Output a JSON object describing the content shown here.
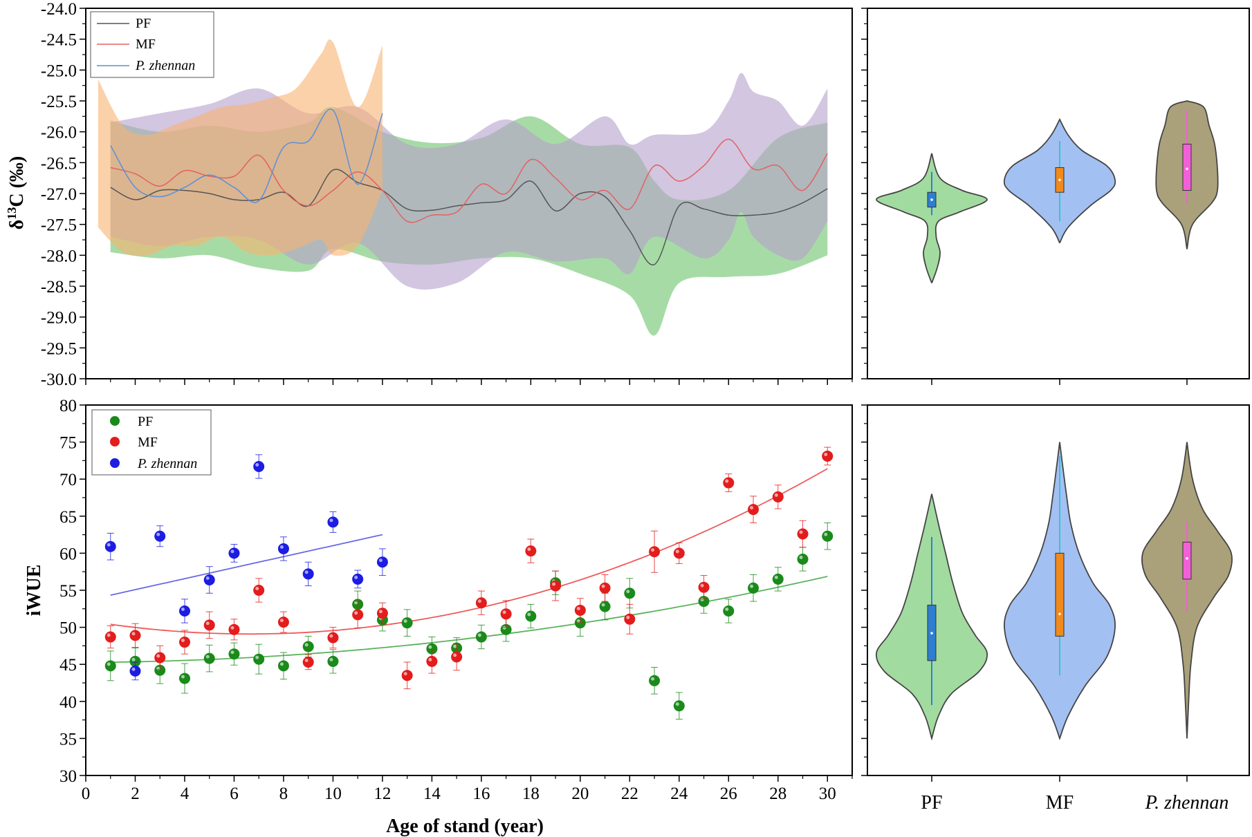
{
  "chart_data": [
    {
      "id": "d13c-series",
      "type": "line",
      "ylabel": "δ13C (‰)",
      "ylabel_main": "δ",
      "ylabel_sup": "13",
      "ylabel_rest": "C (‰)",
      "xlim": [
        0,
        31
      ],
      "ylim": [
        -30.0,
        -24.0
      ],
      "yticks": [
        "-24.0",
        "-24.5",
        "-25.0",
        "-25.5",
        "-26.0",
        "-26.5",
        "-27.0",
        "-27.5",
        "-28.0",
        "-28.5",
        "-29.0",
        "-29.5",
        "-30.0"
      ],
      "legend": {
        "position": "top-left",
        "entries": [
          "PF",
          "MF",
          "P. zhennan"
        ]
      },
      "series": [
        {
          "name": "PF",
          "color": "#555555",
          "x": [
            1,
            2,
            3,
            4,
            5,
            6,
            7,
            8,
            9,
            10,
            11,
            12,
            13,
            14,
            15,
            16,
            17,
            18,
            19,
            20,
            21,
            22,
            23,
            24,
            25,
            26,
            27,
            28,
            29,
            30
          ],
          "y": [
            -26.9,
            -27.1,
            -26.95,
            -26.95,
            -27.0,
            -27.1,
            -27.1,
            -26.98,
            -27.2,
            -26.62,
            -26.82,
            -26.95,
            -27.25,
            -27.27,
            -27.2,
            -27.15,
            -27.1,
            -26.8,
            -27.28,
            -27.0,
            -27.05,
            -27.6,
            -28.15,
            -27.2,
            -27.25,
            -27.35,
            -27.35,
            -27.3,
            -27.15,
            -26.92
          ]
        },
        {
          "name": "MF",
          "color": "#e46060",
          "x": [
            1,
            2,
            3,
            4,
            5,
            6,
            7,
            8,
            9,
            10,
            11,
            12,
            13,
            14,
            15,
            16,
            17,
            18,
            19,
            20,
            21,
            22,
            23,
            24,
            25,
            26,
            27,
            28,
            29,
            30
          ],
          "y": [
            -26.58,
            -26.68,
            -26.88,
            -26.63,
            -26.72,
            -26.72,
            -26.38,
            -26.95,
            -27.2,
            -26.95,
            -26.65,
            -26.95,
            -27.45,
            -27.35,
            -27.3,
            -26.85,
            -27.0,
            -26.45,
            -26.75,
            -27.1,
            -26.95,
            -27.25,
            -26.55,
            -26.8,
            -26.55,
            -26.12,
            -26.6,
            -26.55,
            -26.95,
            -26.35
          ]
        },
        {
          "name": "P. zhennan",
          "color": "#5b8fd8",
          "x": [
            1,
            2,
            3,
            4,
            5,
            6,
            7,
            8,
            9,
            10,
            11,
            12
          ],
          "y": [
            -26.22,
            -26.9,
            -27.05,
            -26.9,
            -26.7,
            -26.9,
            -27.12,
            -26.25,
            -26.15,
            -25.65,
            -26.85,
            -25.7
          ]
        }
      ],
      "bands": [
        {
          "name": "PF",
          "color": "#6dc36a",
          "x": [
            1,
            3,
            5,
            7,
            9,
            10,
            12,
            14,
            16,
            18,
            20,
            22,
            23,
            24,
            26,
            28,
            30
          ],
          "upper": [
            -25.82,
            -26.0,
            -25.9,
            -26.0,
            -25.85,
            -25.6,
            -26.0,
            -26.18,
            -26.1,
            -25.75,
            -26.2,
            -26.25,
            -26.8,
            -27.1,
            -26.95,
            -26.1,
            -25.85
          ],
          "lower": [
            -27.95,
            -28.05,
            -28.0,
            -28.2,
            -28.25,
            -27.9,
            -28.1,
            -28.15,
            -28.05,
            -28.05,
            -28.3,
            -28.65,
            -29.3,
            -28.45,
            -28.35,
            -28.3,
            -28.0
          ]
        },
        {
          "name": "P. zhennan range",
          "color": "#b5a0cc",
          "x": [
            1,
            3,
            5,
            7,
            9,
            11,
            13,
            15,
            17,
            19,
            21,
            22,
            23,
            25,
            26,
            26.5,
            27,
            28,
            29,
            30
          ],
          "upper": [
            -25.85,
            -25.7,
            -25.55,
            -25.3,
            -25.7,
            -25.6,
            -26.2,
            -26.2,
            -25.8,
            -26.2,
            -25.75,
            -26.2,
            -26.05,
            -26.0,
            -25.5,
            -25.05,
            -25.35,
            -25.5,
            -25.9,
            -25.3
          ],
          "lower": [
            -27.7,
            -27.85,
            -27.7,
            -27.75,
            -28.15,
            -27.8,
            -28.5,
            -28.45,
            -27.95,
            -28.1,
            -28.05,
            -28.3,
            -27.7,
            -28.05,
            -27.75,
            -27.3,
            -27.7,
            -28.0,
            -28.05,
            -27.45
          ]
        },
        {
          "name": "MF",
          "color": "#f9b272",
          "x": [
            0.5,
            1.5,
            2.5,
            3.5,
            4.5,
            5.5,
            6.5,
            7.5,
            8.5,
            9.5,
            10,
            11,
            12
          ],
          "upper": [
            -25.15,
            -25.9,
            -26.05,
            -25.9,
            -25.75,
            -25.6,
            -25.55,
            -25.45,
            -25.3,
            -24.75,
            -24.55,
            -25.6,
            -24.6
          ],
          "lower": [
            -27.55,
            -27.95,
            -28.0,
            -27.85,
            -27.85,
            -27.7,
            -27.95,
            -28.0,
            -27.9,
            -27.75,
            -28.0,
            -27.85,
            -26.95
          ]
        }
      ]
    },
    {
      "id": "d13c-violin",
      "type": "violin",
      "ylim": [
        -30.0,
        -24.0
      ],
      "categories": [
        "PF",
        "MF",
        "P. zhennan"
      ],
      "violins": [
        {
          "name": "PF",
          "fill": "#a2dba0",
          "box_color": "#2e7fd0",
          "range": [
            -28.45,
            -26.35
          ],
          "q1": -27.22,
          "q3": -26.98,
          "median": -27.1,
          "whisker": [
            -27.35,
            -26.65
          ],
          "profile": [
            [
              -28.45,
              0.0
            ],
            [
              -28.2,
              0.1
            ],
            [
              -27.95,
              0.15
            ],
            [
              -27.7,
              0.08
            ],
            [
              -27.45,
              0.12
            ],
            [
              -27.3,
              0.5
            ],
            [
              -27.1,
              1.0
            ],
            [
              -26.95,
              0.55
            ],
            [
              -26.75,
              0.15
            ],
            [
              -26.35,
              0.0
            ]
          ]
        },
        {
          "name": "MF",
          "fill": "#a3c0f2",
          "box_color": "#f08a1d",
          "range": [
            -27.8,
            -25.8
          ],
          "q1": -26.98,
          "q3": -26.58,
          "median": -26.78,
          "whisker": [
            -27.45,
            -26.15
          ],
          "profile": [
            [
              -27.8,
              0.0
            ],
            [
              -27.55,
              0.15
            ],
            [
              -27.2,
              0.55
            ],
            [
              -26.95,
              0.92
            ],
            [
              -26.78,
              1.0
            ],
            [
              -26.55,
              0.85
            ],
            [
              -26.3,
              0.4
            ],
            [
              -26.05,
              0.15
            ],
            [
              -25.8,
              0.0
            ]
          ]
        },
        {
          "name": "P. zhennan",
          "fill": "#aaa07a",
          "box_color": "#f35fd8",
          "range": [
            -27.9,
            -25.5
          ],
          "q1": -26.95,
          "q3": -26.2,
          "median": -26.6,
          "whisker": [
            -27.15,
            -25.65
          ],
          "profile": [
            [
              -27.9,
              0.0
            ],
            [
              -27.5,
              0.1
            ],
            [
              -27.15,
              0.45
            ],
            [
              -26.95,
              0.55
            ],
            [
              -26.6,
              0.55
            ],
            [
              -26.2,
              0.5
            ],
            [
              -25.9,
              0.4
            ],
            [
              -25.6,
              0.3
            ],
            [
              -25.5,
              0.0
            ]
          ]
        }
      ]
    },
    {
      "id": "iwue-series",
      "type": "scatter",
      "xlabel": "Age of stand (year)",
      "ylabel": "iWUE",
      "xlim": [
        0,
        31
      ],
      "ylim": [
        30,
        80
      ],
      "xticks": [
        "0",
        "2",
        "4",
        "6",
        "8",
        "10",
        "12",
        "14",
        "16",
        "18",
        "20",
        "22",
        "24",
        "26",
        "28",
        "30"
      ],
      "yticks": [
        "30",
        "35",
        "40",
        "45",
        "50",
        "55",
        "60",
        "65",
        "70",
        "75",
        "80"
      ],
      "legend": {
        "position": "top-left",
        "entries": [
          "PF",
          "MF",
          "P. zhennan"
        ]
      },
      "series": [
        {
          "name": "PF",
          "color": "#1a8a1a",
          "x": [
            1,
            2,
            3,
            4,
            5,
            6,
            7,
            8,
            9,
            10,
            11,
            12,
            13,
            14,
            15,
            16,
            17,
            18,
            19,
            20,
            21,
            22,
            23,
            24,
            25,
            26,
            27,
            28,
            29,
            30
          ],
          "y": [
            44.8,
            45.4,
            44.2,
            43.1,
            45.8,
            46.4,
            45.7,
            44.8,
            47.4,
            45.4,
            53.1,
            51.0,
            50.6,
            47.1,
            47.2,
            48.7,
            49.7,
            51.5,
            56.0,
            50.6,
            52.8,
            54.6,
            42.8,
            39.4,
            53.5,
            52.2,
            55.3,
            56.5,
            59.2,
            62.3
          ],
          "err": [
            2.0,
            1.8,
            1.8,
            2.0,
            1.8,
            1.5,
            2.0,
            1.8,
            1.4,
            1.6,
            1.8,
            1.5,
            1.8,
            1.6,
            1.4,
            1.6,
            1.6,
            1.6,
            1.6,
            1.8,
            1.8,
            2.0,
            1.8,
            1.8,
            1.6,
            1.6,
            1.8,
            1.6,
            1.6,
            1.8
          ]
        },
        {
          "name": "MF",
          "color": "#e31c1c",
          "x": [
            1,
            2,
            3,
            4,
            5,
            6,
            7,
            8,
            9,
            10,
            11,
            12,
            13,
            14,
            15,
            16,
            17,
            18,
            19,
            20,
            21,
            22,
            23,
            24,
            25,
            26,
            27,
            28,
            29,
            30
          ],
          "y": [
            48.7,
            48.9,
            45.9,
            48.0,
            50.3,
            49.7,
            55.0,
            50.7,
            45.3,
            48.6,
            51.7,
            51.9,
            43.5,
            45.4,
            46.0,
            53.3,
            51.8,
            60.3,
            55.6,
            52.3,
            55.3,
            51.1,
            60.2,
            60.0,
            55.4,
            69.5,
            65.9,
            67.6,
            62.6,
            73.1
          ],
          "err": [
            1.5,
            1.6,
            1.6,
            1.6,
            1.8,
            1.4,
            1.6,
            1.4,
            1.0,
            1.4,
            1.8,
            1.4,
            1.8,
            1.6,
            1.8,
            1.6,
            1.8,
            1.6,
            2.0,
            1.6,
            1.8,
            2.0,
            2.8,
            1.4,
            1.6,
            1.2,
            1.8,
            1.6,
            1.8,
            1.2
          ]
        },
        {
          "name": "P. zhennan",
          "color": "#1c1ce3",
          "x": [
            1,
            2,
            3,
            4,
            5,
            6,
            7,
            8,
            9,
            10,
            11,
            12
          ],
          "y": [
            60.9,
            44.1,
            62.3,
            52.2,
            56.4,
            60.0,
            71.7,
            60.6,
            57.2,
            64.2,
            56.5,
            58.8
          ],
          "err": [
            1.8,
            1.2,
            1.4,
            1.6,
            1.8,
            1.2,
            1.6,
            1.6,
            1.6,
            1.4,
            1.2,
            1.8
          ]
        }
      ],
      "fits": [
        {
          "name": "PF",
          "color": "#5bb35b",
          "x_range": [
            1,
            30
          ],
          "coef": [
            45.26,
            0.018,
            0.0123
          ]
        },
        {
          "name": "MF",
          "color": "#ee5a5a",
          "x_range": [
            1,
            30
          ],
          "coef": [
            50.9,
            -0.543,
            0.0409
          ]
        },
        {
          "name": "P. zhennan",
          "color": "#6868e6",
          "x_range": [
            1,
            12
          ],
          "coef": [
            53.6,
            0.742,
            0.0
          ]
        }
      ]
    },
    {
      "id": "iwue-violin",
      "type": "violin",
      "ylim": [
        30,
        80
      ],
      "categories": [
        "PF",
        "MF",
        "P. zhennan"
      ],
      "violins": [
        {
          "name": "PF",
          "fill": "#a2dba0",
          "box_color": "#2e7fd0",
          "range": [
            35.0,
            68.0
          ],
          "q1": 45.5,
          "q3": 53.0,
          "median": 49.2,
          "whisker": [
            39.5,
            62.2
          ],
          "profile": [
            [
              35.0,
              0.0
            ],
            [
              38.0,
              0.12
            ],
            [
              41.0,
              0.35
            ],
            [
              44.0,
              0.85
            ],
            [
              46.5,
              1.0
            ],
            [
              49.0,
              0.78
            ],
            [
              52.0,
              0.55
            ],
            [
              56.0,
              0.38
            ],
            [
              60.0,
              0.25
            ],
            [
              64.0,
              0.12
            ],
            [
              68.0,
              0.0
            ]
          ]
        },
        {
          "name": "MF",
          "fill": "#a3c0f2",
          "box_color": "#f08a1d",
          "range": [
            35.0,
            75.0
          ],
          "q1": 48.8,
          "q3": 60.0,
          "median": 51.8,
          "whisker": [
            43.5,
            73.1
          ],
          "profile": [
            [
              35.0,
              0.0
            ],
            [
              38.0,
              0.15
            ],
            [
              42.0,
              0.45
            ],
            [
              46.0,
              0.85
            ],
            [
              50.0,
              1.0
            ],
            [
              53.0,
              0.9
            ],
            [
              56.0,
              0.6
            ],
            [
              60.0,
              0.35
            ],
            [
              64.0,
              0.2
            ],
            [
              68.0,
              0.12
            ],
            [
              72.0,
              0.05
            ],
            [
              75.0,
              0.0
            ]
          ]
        },
        {
          "name": "P. zhennan",
          "fill": "#aaa07a",
          "box_color": "#f35fd8",
          "range": [
            35.0,
            75.0
          ],
          "q1": 56.5,
          "q3": 61.5,
          "median": 59.3,
          "whisker": [
            52.2,
            64.2
          ],
          "profile": [
            [
              35.0,
              0.0
            ],
            [
              40.0,
              0.03
            ],
            [
              45.0,
              0.07
            ],
            [
              50.0,
              0.18
            ],
            [
              54.0,
              0.48
            ],
            [
              57.0,
              0.75
            ],
            [
              60.0,
              0.8
            ],
            [
              63.0,
              0.55
            ],
            [
              66.0,
              0.28
            ],
            [
              70.0,
              0.1
            ],
            [
              75.0,
              0.0
            ]
          ]
        }
      ]
    }
  ]
}
